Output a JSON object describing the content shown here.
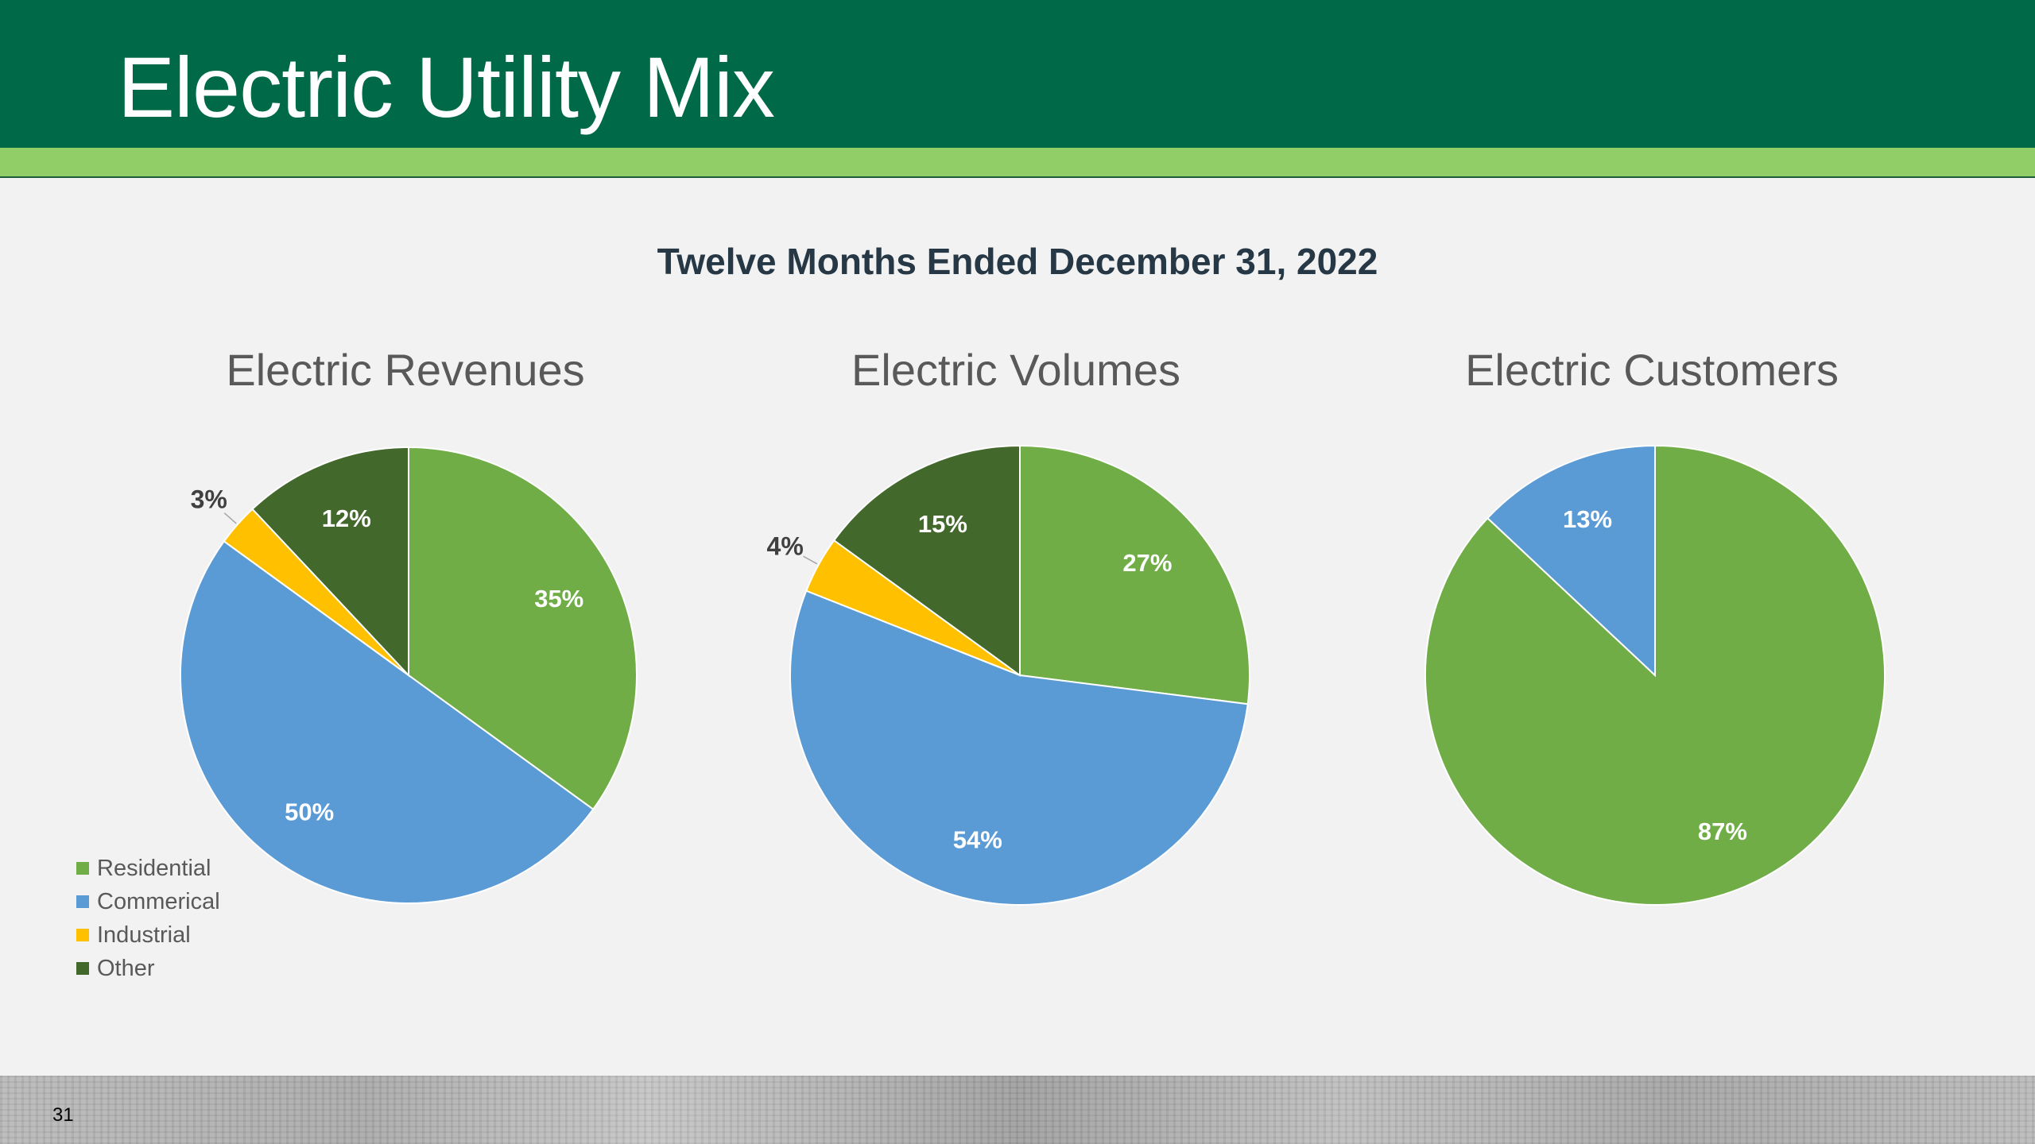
{
  "slide": {
    "title": "Electric Utility Mix",
    "subtitle": "Twelve Months Ended December 31, 2022",
    "page_number": "31"
  },
  "colors": {
    "header": "#006a48",
    "accent": "#92ce67",
    "Residential": "#70ad47",
    "Commerical": "#5b9bd5",
    "Industrial": "#ffc000",
    "Other": "#43682b"
  },
  "legend": [
    {
      "label": "Residential",
      "color": "#70ad47"
    },
    {
      "label": "Commerical",
      "color": "#5b9bd5"
    },
    {
      "label": "Industrial",
      "color": "#ffc000"
    },
    {
      "label": "Other",
      "color": "#43682b"
    }
  ],
  "chart_data": [
    {
      "type": "pie",
      "title": "Electric Revenues",
      "legend_position": "bottom-left",
      "slices": [
        {
          "category": "Residential",
          "value": 35,
          "label": "35%"
        },
        {
          "category": "Commerical",
          "value": 50,
          "label": "50%"
        },
        {
          "category": "Industrial",
          "value": 3,
          "label": "3%"
        },
        {
          "category": "Other",
          "value": 12,
          "label": "12%"
        }
      ]
    },
    {
      "type": "pie",
      "title": "Electric Volumes",
      "slices": [
        {
          "category": "Residential",
          "value": 27,
          "label": "27%"
        },
        {
          "category": "Commerical",
          "value": 54,
          "label": "54%"
        },
        {
          "category": "Industrial",
          "value": 4,
          "label": "4%"
        },
        {
          "category": "Other",
          "value": 15,
          "label": "15%"
        }
      ]
    },
    {
      "type": "pie",
      "title": "Electric Customers",
      "slices": [
        {
          "category": "Residential",
          "value": 87,
          "label": "87%"
        },
        {
          "category": "Commerical",
          "value": 13,
          "label": "13%"
        }
      ]
    }
  ]
}
